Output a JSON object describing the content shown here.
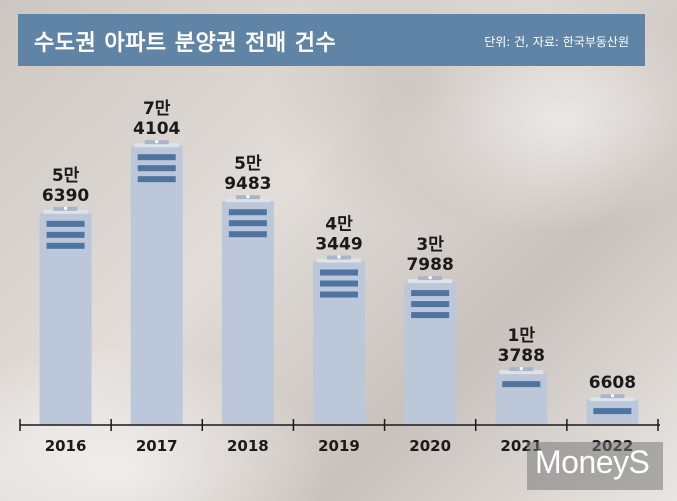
{
  "header": {
    "title": "수도권 아파트 분양권 전매 건수",
    "source": "단위: 건, 자료: 한국부동산원"
  },
  "logo": {
    "text": "MoneyS"
  },
  "colors": {
    "title_bar": "#5f84a6",
    "bar_fill": "#bcc7d9",
    "bar_stripe": "#4f74a0",
    "axis": "#1a1a1a"
  },
  "chart_data": {
    "type": "bar",
    "title": "수도권 아파트 분양권 전매 건수",
    "xlabel": "",
    "ylabel": "",
    "categories": [
      "2016",
      "2017",
      "2018",
      "2019",
      "2020",
      "2021",
      "2022"
    ],
    "values": [
      56390,
      74104,
      59483,
      43449,
      37988,
      13788,
      6608
    ],
    "value_labels": [
      [
        "5만",
        "6390"
      ],
      [
        "7만",
        "4104"
      ],
      [
        "5만",
        "9483"
      ],
      [
        "4만",
        "3449"
      ],
      [
        "3만",
        "7988"
      ],
      [
        "1만",
        "3788"
      ],
      [
        "",
        "6608"
      ]
    ],
    "ylim": [
      0,
      80000
    ],
    "grid": false,
    "legend": "none"
  }
}
